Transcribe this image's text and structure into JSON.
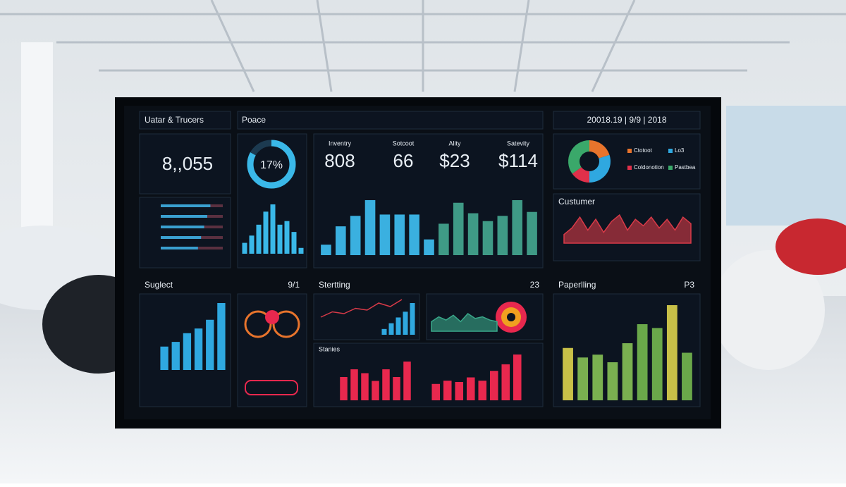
{
  "header": {
    "left": "Uatar & Trucers",
    "middle": "Poace",
    "right": "20018.19 | 9/9 | 2018"
  },
  "total": {
    "value": "8,,055",
    "bars": [
      80,
      75,
      70,
      65,
      60
    ],
    "color": "#3aa0d0"
  },
  "donut": {
    "label": "17%",
    "value": 17,
    "bars": [
      15,
      25,
      40,
      58,
      68,
      40,
      45,
      30,
      8
    ],
    "color": "#3ab8e8"
  },
  "kpis": [
    {
      "name": "Inventry",
      "value": "808"
    },
    {
      "name": "Sotcoot",
      "value": "66"
    },
    {
      "name": "Ality",
      "value": "$23"
    },
    {
      "name": "Satevity",
      "value": "$114"
    }
  ],
  "kpi_bars": {
    "series": [
      {
        "color": "#3ab0e0",
        "values": [
          8,
          22,
          30,
          42,
          31,
          31,
          31,
          12
        ]
      },
      {
        "color": "#3f9a86",
        "values": [
          24,
          40,
          32,
          26,
          30,
          42,
          33
        ]
      }
    ]
  },
  "pie": {
    "slices": [
      {
        "name": "Ctotoot",
        "value": 20,
        "color": "#e8742c"
      },
      {
        "name": "Lo3",
        "value": 30,
        "color": "#2fa8e0"
      },
      {
        "name": "Coldonotion",
        "value": 15,
        "color": "#e0304a"
      },
      {
        "name": "Pastbea",
        "value": 35,
        "color": "#3aa86a"
      }
    ]
  },
  "customer": {
    "title": "Custumer",
    "color": "#d83a48",
    "values": [
      20,
      35,
      60,
      30,
      55,
      25,
      50,
      65,
      30,
      55,
      40,
      60,
      35,
      55,
      30,
      60,
      45
    ]
  },
  "suglect": {
    "title": "Suglect",
    "badge": "9/1",
    "color": "#2fa8e0",
    "values": [
      35,
      42,
      55,
      62,
      75,
      100
    ]
  },
  "stertting": {
    "title": "Stertting",
    "badge": "23",
    "line": [
      30,
      45,
      40,
      55,
      50,
      70,
      60,
      80
    ],
    "line_color": "#d83a48",
    "bars": [
      10,
      20,
      30,
      40,
      55
    ],
    "bar_color": "#2fa8e0",
    "area": [
      30,
      45,
      35,
      50,
      30,
      55,
      40,
      45,
      35,
      30
    ],
    "area_color": "#3aa88a"
  },
  "stanies": {
    "title": "Stanies",
    "color": "#e8284e",
    "left": [
      30,
      40,
      35,
      25,
      40,
      30,
      50
    ],
    "right": [
      25,
      30,
      28,
      35,
      30,
      45,
      55,
      70
    ]
  },
  "paperlling": {
    "title": "Paperlling",
    "badge": "P3",
    "values": [
      55,
      45,
      48,
      40,
      60,
      80,
      76,
      100,
      50
    ],
    "colors": [
      "#c8c048",
      "#7ab050",
      "#7ab050",
      "#7ab050",
      "#7ab050",
      "#6aa84a",
      "#6aa84a",
      "#c8c048",
      "#6aa84a"
    ]
  }
}
